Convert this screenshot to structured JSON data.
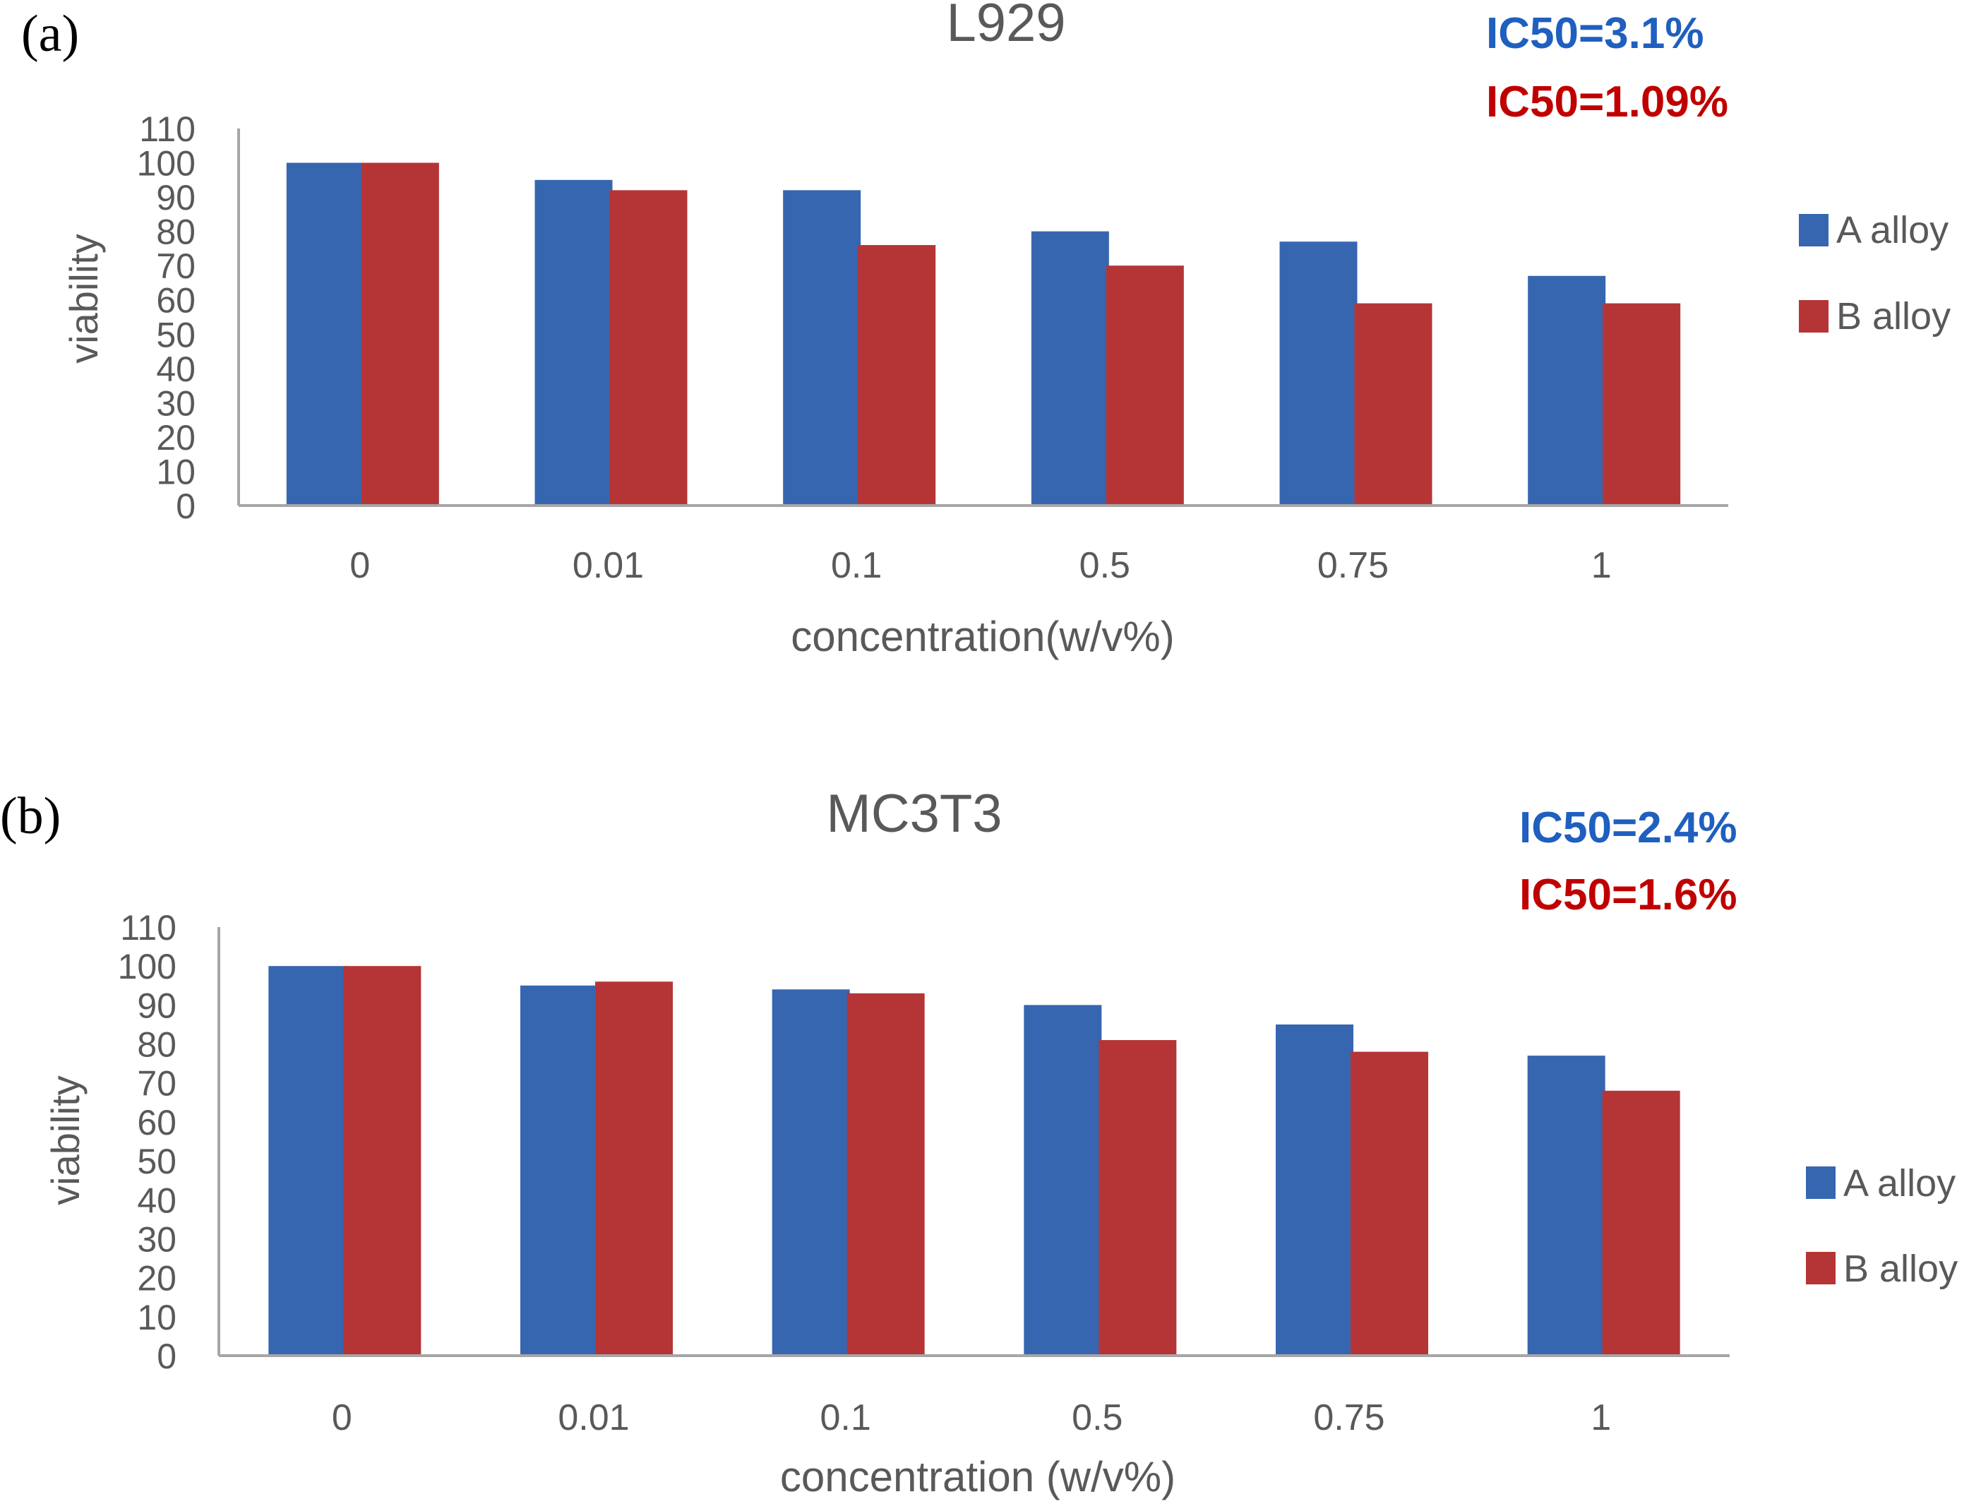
{
  "colors": {
    "series_a": "#3766b1",
    "series_b": "#b53536",
    "ic50_a": "#1f5fbf",
    "ic50_b": "#c00000",
    "axis": "#a6a6a6",
    "text": "#595959",
    "title": "#595959"
  },
  "chart_data": [
    {
      "panel_label": "(a)",
      "type": "bar",
      "title": "L929",
      "xlabel": "concentration(w/v%)",
      "ylabel": "viability",
      "ylim": [
        0,
        110
      ],
      "yticks": [
        "0",
        "10",
        "20",
        "30",
        "40",
        "50",
        "60",
        "70",
        "80",
        "90",
        "100",
        "110"
      ],
      "categories": [
        "0",
        "0.01",
        "0.1",
        "0.5",
        "0.75",
        "1"
      ],
      "series": [
        {
          "name": "A alloy",
          "values": [
            100,
            95,
            92,
            80,
            77,
            67
          ]
        },
        {
          "name": "B alloy",
          "values": [
            100,
            92,
            76,
            70,
            59,
            59
          ]
        }
      ],
      "annotations": [
        {
          "text": "IC50=3.1%",
          "series": "A alloy"
        },
        {
          "text": "IC50=1.09%",
          "series": "B alloy"
        }
      ],
      "legend_position": "right",
      "grid": false
    },
    {
      "panel_label": "(b)",
      "type": "bar",
      "title": "MC3T3",
      "xlabel": "concentration (w/v%)",
      "ylabel": "viability",
      "ylim": [
        0,
        110
      ],
      "yticks": [
        "0",
        "10",
        "20",
        "30",
        "40",
        "50",
        "60",
        "70",
        "80",
        "90",
        "100",
        "110"
      ],
      "categories": [
        "0",
        "0.01",
        "0.1",
        "0.5",
        "0.75",
        "1"
      ],
      "series": [
        {
          "name": "A alloy",
          "values": [
            100,
            95,
            94,
            90,
            85,
            77
          ]
        },
        {
          "name": "B alloy",
          "values": [
            100,
            96,
            93,
            81,
            78,
            68
          ]
        }
      ],
      "annotations": [
        {
          "text": "IC50=2.4%",
          "series": "A alloy"
        },
        {
          "text": "IC50=1.6%",
          "series": "B alloy"
        }
      ],
      "legend_position": "right",
      "grid": false
    }
  ]
}
